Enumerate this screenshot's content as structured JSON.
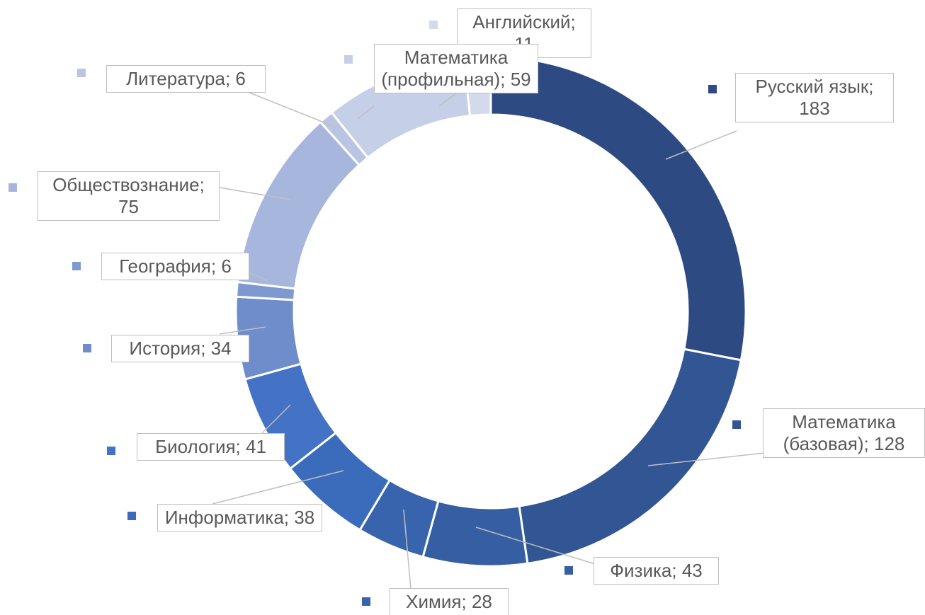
{
  "chart_data": {
    "type": "donut",
    "categories": [
      "Русский язык",
      "Математика (базовая)",
      "Физика",
      "Химия",
      "Информатика",
      "Биология",
      "История",
      "География",
      "Обществознание",
      "Литература",
      "Математика (профильная)",
      "Английский"
    ],
    "values": [
      183,
      128,
      43,
      28,
      38,
      41,
      34,
      6,
      75,
      6,
      59,
      11
    ],
    "colors": [
      "#2e4a82",
      "#325593",
      "#355ea3",
      "#3864ae",
      "#3b6bbb",
      "#4472c4",
      "#6f8ccb",
      "#7e98d0",
      "#a7b6dc",
      "#b9c5e3",
      "#c5cfe7",
      "#d2daec"
    ],
    "label_separator": "; "
  }
}
